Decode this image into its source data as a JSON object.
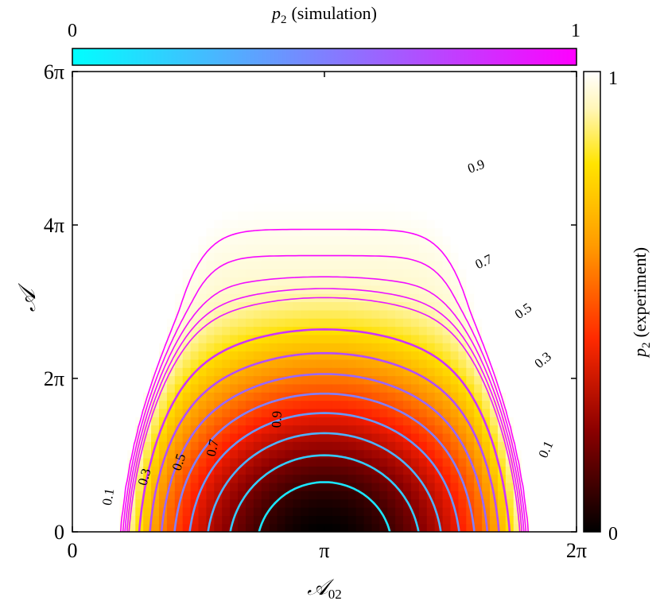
{
  "chart_data": {
    "type": "heatmap",
    "title": "",
    "xlabel": "𝒜",
    "xlabel_sub": "02",
    "ylabel": "𝒜",
    "xlim": [
      0,
      6.2832
    ],
    "ylim": [
      0,
      18.8496
    ],
    "x_ticks": [
      {
        "value": 0,
        "label": "0"
      },
      {
        "value": 3.1416,
        "label": "π"
      },
      {
        "value": 6.2832,
        "label": "2π"
      }
    ],
    "y_ticks": [
      {
        "value": 0,
        "label": "0"
      },
      {
        "value": 6.2832,
        "label": "2π"
      },
      {
        "value": 12.5664,
        "label": "4π"
      },
      {
        "value": 18.8496,
        "label": "6π"
      }
    ],
    "colorbar_experiment": {
      "label_p": "p",
      "label_sub": "2",
      "label_rest": "(experiment)",
      "range": [
        0,
        1
      ],
      "min_label": "0",
      "max_label": "1",
      "colormap": "hot",
      "colors": [
        "#000000",
        "#8b0000",
        "#ff2000",
        "#ff8c00",
        "#ffe000",
        "#fff8c0",
        "#ffffff"
      ]
    },
    "colorbar_simulation": {
      "label_p": "p",
      "label_sub": "2",
      "label_rest": "(simulation)",
      "range": [
        0,
        1
      ],
      "min_label": "0",
      "max_label": "1",
      "colormap": "cool",
      "colors": [
        "#00ffff",
        "#ff00ff"
      ]
    },
    "contour_levels": [
      0.1,
      0.2,
      0.3,
      0.4,
      0.5,
      0.6,
      0.7,
      0.8,
      0.9,
      0.92,
      0.94,
      0.96,
      0.98
    ],
    "contour_labels": [
      {
        "text": "0.1"
      },
      {
        "text": "0.3"
      },
      {
        "text": "0.5"
      },
      {
        "text": "0.7"
      },
      {
        "text": "0.9"
      },
      {
        "text": "0.9"
      },
      {
        "text": "0.7"
      },
      {
        "text": "0.5"
      },
      {
        "text": "0.3"
      },
      {
        "text": "0.1"
      }
    ]
  }
}
